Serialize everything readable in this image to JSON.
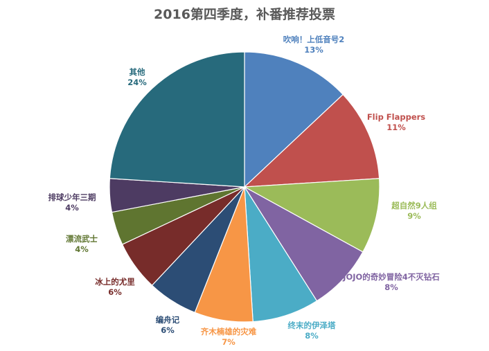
{
  "chart_data": {
    "type": "pie",
    "title": "2016第四季度，补番推荐投票",
    "slices": [
      {
        "name": "吹响！上低音号2",
        "value": 13,
        "label": "13%",
        "color": "#4f81bd"
      },
      {
        "name": "Flip Flappers",
        "value": 11,
        "label": "11%",
        "color": "#c0504d"
      },
      {
        "name": "超自然9人组",
        "value": 9,
        "label": "9%",
        "color": "#9bbb59"
      },
      {
        "name": "JOJO的奇妙冒险4不灭钻石",
        "value": 8,
        "label": "8%",
        "color": "#8064a2"
      },
      {
        "name": "终末的伊泽塔",
        "value": 8,
        "label": "8%",
        "color": "#4bacc6"
      },
      {
        "name": "齐木楠雄的灾难",
        "value": 7,
        "label": "7%",
        "color": "#f79646"
      },
      {
        "name": "编舟记",
        "value": 6,
        "label": "6%",
        "color": "#2c4d75"
      },
      {
        "name": "冰上的尤里",
        "value": 6,
        "label": "6%",
        "color": "#772c2a"
      },
      {
        "name": "漂流武士",
        "value": 4,
        "label": "4%",
        "color": "#5f7530"
      },
      {
        "name": "排球少年三期",
        "value": 4,
        "label": "4%",
        "color": "#4d3b62"
      },
      {
        "name": "其他",
        "value": 24,
        "label": "24%",
        "color": "#276a7c"
      }
    ],
    "legend": "none"
  }
}
